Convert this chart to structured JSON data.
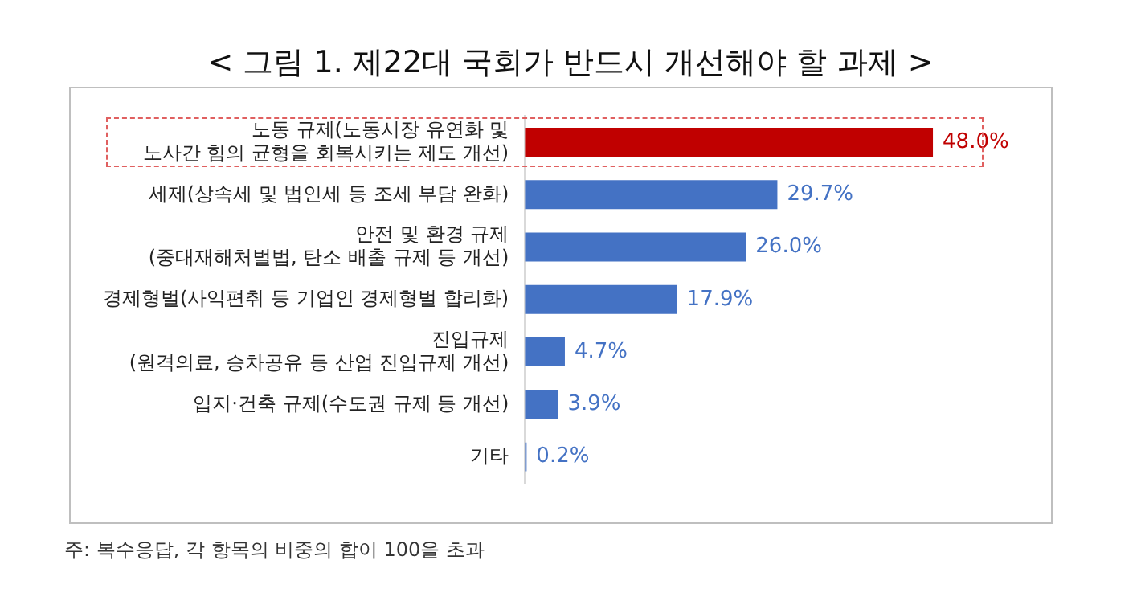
{
  "chart_data": {
    "type": "bar",
    "orientation": "horizontal",
    "title": "< 그림 1. 제22대 국회가 반드시 개선해야 할 과제 >",
    "categories": [
      "노동 규제(노동시장 유연화 및\n노사간 힘의 균형을 회복시키는 제도 개선)",
      "세제(상속세 및 법인세 등 조세 부담 완화)",
      "안전 및 환경 규제\n(중대재해처벌법, 탄소 배출 규제 등 개선)",
      "경제형벌(사익편취 등 기업인 경제형벌 합리화)",
      "진입규제\n(원격의료, 승차공유 등 산업 진입규제 개선)",
      "입지·건축 규제(수도권 규제 등 개선)",
      "기타"
    ],
    "values": [
      48.0,
      29.7,
      26.0,
      17.9,
      4.7,
      3.9,
      0.2
    ],
    "value_labels": [
      "48.0%",
      "29.7%",
      "26.0%",
      "17.9%",
      "4.7%",
      "3.9%",
      "0.2%"
    ],
    "colors": [
      "#c00000",
      "#4472c4",
      "#4472c4",
      "#4472c4",
      "#4472c4",
      "#4472c4",
      "#4472c4"
    ],
    "tick_labels": "y",
    "grid": false,
    "legend": false,
    "annotations": [
      "주: 복수응답, 각 항목의 비중의 합이 100을 초과"
    ]
  }
}
